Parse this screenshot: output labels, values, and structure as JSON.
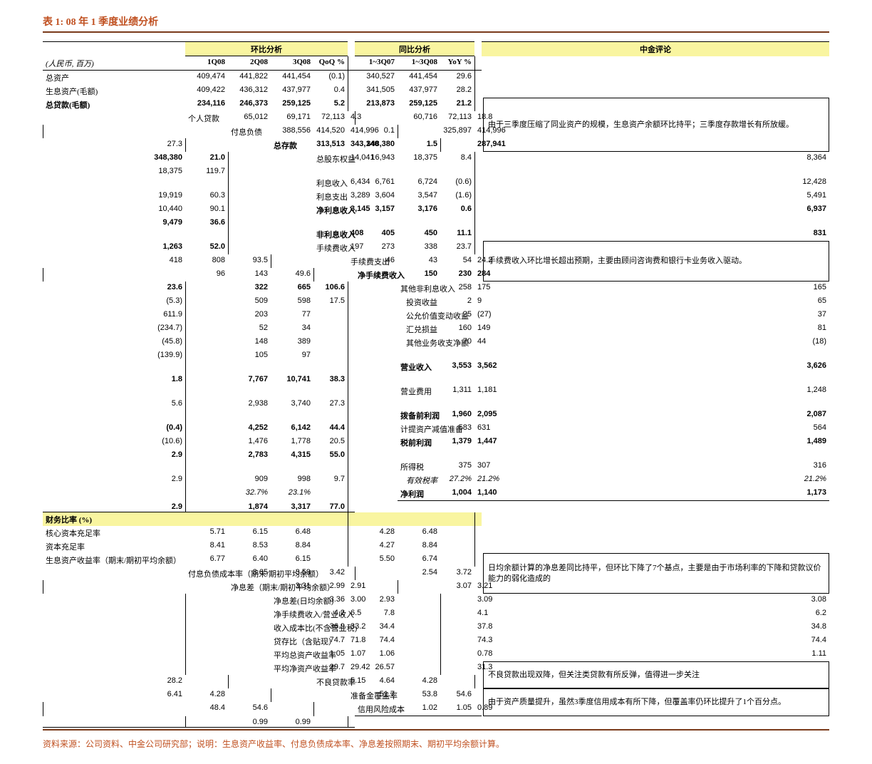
{
  "title": "表 1: 08 年 1 季度业绩分析",
  "unit_label": "(人民币, 百万)",
  "group_headers": {
    "qoq": "环比分析",
    "yoy": "同比分析",
    "comment": "中金评论"
  },
  "sub_headers": {
    "q1": "1Q08",
    "q2": "2Q08",
    "q3": "3Q08",
    "qoq": "QoQ %",
    "y07": "1~3Q07",
    "y08": "1~3Q08",
    "yoy": "YoY %"
  },
  "section_ratio": "财务比率 (%)",
  "eff_tax_label": "有效税率",
  "rows": [
    {
      "l": "总资产",
      "v": [
        "409,474",
        "441,822",
        "441,454",
        "(0.1)",
        "340,527",
        "441,454",
        "29.6"
      ]
    },
    {
      "l": "生息资产(毛额)",
      "v": [
        "409,422",
        "436,312",
        "437,977",
        "0.4",
        "341,505",
        "437,977",
        "28.2"
      ]
    },
    {
      "l": "总贷款(毛额)",
      "bold": true,
      "v": [
        "234,116",
        "246,373",
        "259,125",
        "5.2",
        "213,873",
        "259,125",
        "21.2"
      ]
    },
    {
      "l": "个人贷款",
      "v": [
        "65,012",
        "69,171",
        "72,113",
        "4.3",
        "60,716",
        "72,113",
        "18.8"
      ]
    },
    {
      "l": "付息负债",
      "v": [
        "388,556",
        "414,520",
        "414,996",
        "0.1",
        "325,897",
        "414,996",
        "27.3"
      ]
    },
    {
      "l": "总存款",
      "bold": true,
      "v": [
        "313,513",
        "343,140",
        "348,380",
        "1.5",
        "287,941",
        "348,380",
        "21.0"
      ]
    },
    {
      "l": "总股东权益",
      "v": [
        "14,041",
        "16,943",
        "18,375",
        "8.4",
        "8,364",
        "18,375",
        "119.7"
      ]
    },
    {
      "blank": true
    },
    {
      "l": "利息收入",
      "v": [
        "6,434",
        "6,761",
        "6,724",
        "(0.6)",
        "12,428",
        "19,919",
        "60.3"
      ]
    },
    {
      "l": "利息支出",
      "v": [
        "3,289",
        "3,604",
        "3,547",
        "(1.6)",
        "5,491",
        "10,440",
        "90.1"
      ]
    },
    {
      "l": "净利息收入",
      "bold": true,
      "v": [
        "3,145",
        "3,157",
        "3,176",
        "0.6",
        "6,937",
        "9,479",
        "36.6"
      ]
    },
    {
      "blank": true
    },
    {
      "l": "非利息收入",
      "bold": true,
      "v": [
        "408",
        "405",
        "450",
        "11.1",
        "831",
        "1,263",
        "52.0"
      ]
    },
    {
      "l": "手续费收入",
      "v": [
        "197",
        "273",
        "338",
        "23.7",
        "418",
        "808",
        "93.5"
      ]
    },
    {
      "l": "手续费支出",
      "v": [
        "46",
        "43",
        "54",
        "24.2",
        "96",
        "143",
        "49.6"
      ]
    },
    {
      "l": "净手续费收入",
      "bold": true,
      "v": [
        "150",
        "230",
        "284",
        "23.6",
        "322",
        "665",
        "106.6"
      ]
    },
    {
      "l": "其他非利息收入",
      "v": [
        "258",
        "175",
        "165",
        "(5.3)",
        "509",
        "598",
        "17.5"
      ]
    },
    {
      "l": "投资收益",
      "indent": true,
      "v": [
        "2",
        "9",
        "65",
        "611.9",
        "203",
        "77",
        ""
      ]
    },
    {
      "l": "公允价值变动收益",
      "indent": true,
      "v": [
        "25",
        "(27)",
        "37",
        "(234.7)",
        "52",
        "34",
        ""
      ]
    },
    {
      "l": "汇兑损益",
      "indent": true,
      "v": [
        "160",
        "149",
        "81",
        "(45.8)",
        "148",
        "389",
        ""
      ]
    },
    {
      "l": "其他业务收支净额",
      "indent": true,
      "v": [
        "70",
        "44",
        "(18)",
        "(139.9)",
        "105",
        "97",
        ""
      ]
    },
    {
      "blank": true
    },
    {
      "l": "营业收入",
      "bold": true,
      "v": [
        "3,553",
        "3,562",
        "3,626",
        "1.8",
        "7,767",
        "10,741",
        "38.3"
      ]
    },
    {
      "blank": true
    },
    {
      "l": "营业费用",
      "v": [
        "1,311",
        "1,181",
        "1,248",
        "5.6",
        "2,938",
        "3,740",
        "27.3"
      ]
    },
    {
      "blank": true
    },
    {
      "l": "拨备前利润",
      "bold": true,
      "v": [
        "1,960",
        "2,095",
        "2,087",
        "(0.4)",
        "4,252",
        "6,142",
        "44.4"
      ]
    },
    {
      "l": "计提资产减值准备",
      "v": [
        "583",
        "631",
        "564",
        "(10.6)",
        "1,476",
        "1,778",
        "20.5"
      ]
    },
    {
      "l": "税前利润",
      "bold": true,
      "v": [
        "1,379",
        "1,447",
        "1,489",
        "2.9",
        "2,783",
        "4,315",
        "55.0"
      ]
    },
    {
      "blank": true
    },
    {
      "l": "所得税",
      "v": [
        "375",
        "307",
        "316",
        "2.9",
        "909",
        "998",
        "9.7"
      ]
    },
    {
      "eff_tax": true,
      "v": [
        "27.2%",
        "21.2%",
        "21.2%",
        "",
        "32.7%",
        "23.1%",
        ""
      ]
    },
    {
      "l": "净利润",
      "bold": true,
      "underline": true,
      "v": [
        "1,004",
        "1,140",
        "1,173",
        "2.9",
        "1,874",
        "3,317",
        "77.0"
      ]
    }
  ],
  "ratio_rows": [
    {
      "l": "核心资本充足率",
      "v": [
        "5.71",
        "6.15",
        "6.48",
        "",
        "4.28",
        "6.48",
        ""
      ]
    },
    {
      "l": "资本充足率",
      "v": [
        "8.41",
        "8.53",
        "8.84",
        "",
        "4.27",
        "8.84",
        ""
      ]
    },
    {
      "l": "生息资产收益率（期末/期初平均余额）",
      "v": [
        "6.77",
        "6.40",
        "6.15",
        "",
        "5.50",
        "6.74",
        ""
      ]
    },
    {
      "l": "付息负债成本率（期末/期初平均余额）",
      "v": [
        "3.65",
        "3.59",
        "3.42",
        "",
        "2.54",
        "3.72",
        ""
      ]
    },
    {
      "l": "净息差（期末/期初平均余额）",
      "v": [
        "3.31",
        "2.99",
        "2.91",
        "",
        "3.07",
        "3.21",
        ""
      ]
    },
    {
      "l": "净息差(日均余额)",
      "v": [
        "3.36",
        "3.00",
        "2.93",
        "",
        "3.09",
        "3.08",
        ""
      ]
    },
    {
      "l": "净手续费收入/营业收入",
      "v": [
        "4.2",
        "6.5",
        "7.8",
        "",
        "4.1",
        "6.2",
        ""
      ]
    },
    {
      "l": "收入成本比(不含营业税)",
      "v": [
        "36.9",
        "33.2",
        "34.4",
        "",
        "37.8",
        "34.8",
        ""
      ]
    },
    {
      "l": "贷存比（含贴现）",
      "v": [
        "74.7",
        "71.8",
        "74.4",
        "",
        "74.3",
        "74.4",
        ""
      ]
    },
    {
      "l": "平均总资产收益率",
      "v": [
        "1.05",
        "1.07",
        "1.06",
        "",
        "0.78",
        "1.11",
        ""
      ]
    },
    {
      "l": "平均净资产收益率",
      "v": [
        "29.7",
        "29.42",
        "26.57",
        "",
        "31.3",
        "28.2",
        ""
      ]
    },
    {
      "l": "不良贷款率",
      "v": [
        "5.15",
        "4.64",
        "4.28",
        "",
        "6.41",
        "4.28",
        ""
      ]
    },
    {
      "l": "准备金覆盖率",
      "v": [
        "51.7",
        "53.8",
        "54.6",
        "",
        "48.4",
        "54.6",
        ""
      ]
    },
    {
      "l": "信用风险成本",
      "underline": true,
      "v": [
        "1.02",
        "1.05",
        "0.89",
        "",
        "0.99",
        "0.99",
        ""
      ]
    }
  ],
  "comments": {
    "c1": "由于三季度压缩了同业资产的规模，生息资产余额环比持平；三季度存款增长有所放缓。",
    "c2": "手续费收入环比增长超出预期，主要由顾问咨询费和银行卡业务收入驱动。",
    "c3": "日均余额计算的净息差同比持平，但环比下降了7个基点，主要是由于市场利率的下降和贷款议价能力的弱化造成的",
    "c4": "不良贷款出现双降，但关注类贷款有所反弹，值得进一步关注",
    "c5": "由于资产质量提升，虽然3季度信用成本有所下降，但覆盖率仍环比提升了1个百分点。"
  },
  "footer": "资料来源：公司资料、中金公司研究部；说明：生息资产收益率、付息负债成本率、净息差按照期末、期初平均余额计算。"
}
